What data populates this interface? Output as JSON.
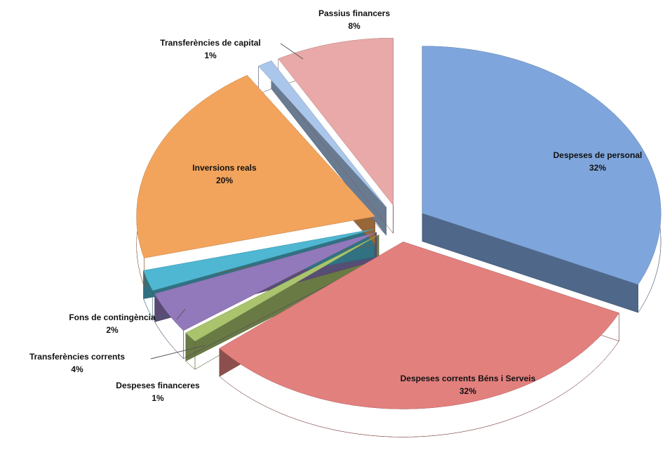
{
  "chart_data": {
    "type": "pie",
    "categories": [
      "Despeses de personal",
      "Despeses corrents Béns i Serveis",
      "Despeses financeres",
      "Transferències corrents",
      "Fons de contingència",
      "Inversions reals",
      "Transferències de capital",
      "Passius financers"
    ],
    "values": [
      32,
      32,
      1,
      4,
      2,
      20,
      1,
      8
    ],
    "value_labels": [
      "32%",
      "32%",
      "1%",
      "4%",
      "2%",
      "20%",
      "1%",
      "8%"
    ],
    "colors": [
      "#7fa6dc",
      "#e2807e",
      "#a9c46d",
      "#9279bb",
      "#4fb7d2",
      "#f3a45c",
      "#aac6ea",
      "#e8a9a8"
    ]
  }
}
